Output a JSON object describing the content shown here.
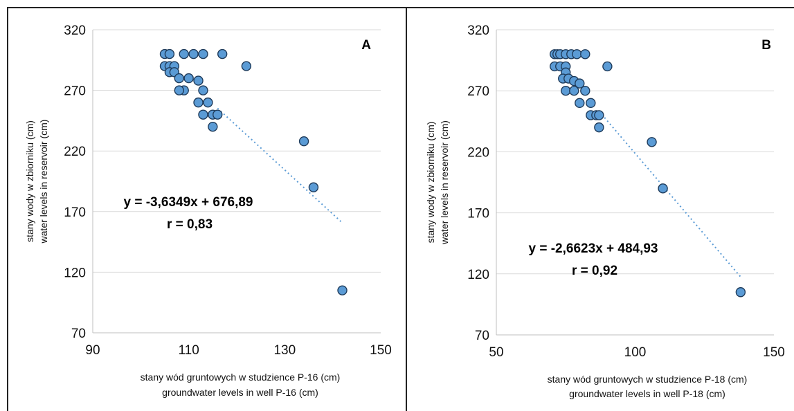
{
  "chart_data": [
    {
      "type": "scatter",
      "panel_label": "A",
      "xlim": [
        90,
        150
      ],
      "ylim": [
        70,
        320
      ],
      "xticks": [
        "90",
        "110",
        "130",
        "150"
      ],
      "yticks": [
        "70",
        "120",
        "170",
        "220",
        "270",
        "320"
      ],
      "xlabel": [
        "stany wód gruntowych w studzience P-16 (cm)",
        "groundwater levels in well P-16 (cm)"
      ],
      "ylabel": [
        "stany wody w zbiorniku (cm)",
        "water levels in reservoir (cm)"
      ],
      "equation": "y = -3,6349x + 676,89",
      "r_text": "r = 0,83",
      "trendline": {
        "slope": -3.6349,
        "intercept": 676.89,
        "x_range": [
          116,
          142
        ]
      },
      "marker_color": "#5b9bd5",
      "marker_edge": "#1f3b5a",
      "trend_color": "#5b9bd5",
      "points": [
        [
          105,
          300
        ],
        [
          106,
          300
        ],
        [
          105,
          290
        ],
        [
          106,
          290
        ],
        [
          107,
          290
        ],
        [
          106,
          285
        ],
        [
          107,
          285
        ],
        [
          108,
          280
        ],
        [
          109,
          270
        ],
        [
          108,
          270
        ],
        [
          110,
          280
        ],
        [
          112,
          278
        ],
        [
          113,
          270
        ],
        [
          112,
          260
        ],
        [
          114,
          260
        ],
        [
          113,
          250
        ],
        [
          115,
          250
        ],
        [
          116,
          250
        ],
        [
          115,
          240
        ],
        [
          109,
          300
        ],
        [
          111,
          300
        ],
        [
          113,
          300
        ],
        [
          117,
          300
        ],
        [
          122,
          290
        ],
        [
          134,
          228
        ],
        [
          136,
          190
        ],
        [
          142,
          105
        ]
      ]
    },
    {
      "type": "scatter",
      "panel_label": "B",
      "xlim": [
        50,
        150
      ],
      "ylim": [
        70,
        320
      ],
      "xticks": [
        "50",
        "100",
        "150"
      ],
      "yticks": [
        "70",
        "120",
        "170",
        "220",
        "270",
        "320"
      ],
      "xlabel": [
        "stany wód gruntowych w studzience P-18 (cm)",
        "groundwater levels in well P-18 (cm)"
      ],
      "ylabel": [
        "stany wody w zbiorniku (cm)",
        "water levels in reservoir (cm)"
      ],
      "equation": "y = -2,6623x + 484,93",
      "r_text": "r = 0,92",
      "trendline": {
        "slope": -2.6623,
        "intercept": 484.93,
        "x_range": [
          88,
          138
        ]
      },
      "marker_color": "#5b9bd5",
      "marker_edge": "#1f3b5a",
      "trend_color": "#5b9bd5",
      "points": [
        [
          71,
          300
        ],
        [
          72,
          300
        ],
        [
          73,
          300
        ],
        [
          75,
          300
        ],
        [
          77,
          300
        ],
        [
          79,
          300
        ],
        [
          82,
          300
        ],
        [
          71,
          290
        ],
        [
          73,
          290
        ],
        [
          75,
          290
        ],
        [
          75,
          285
        ],
        [
          74,
          280
        ],
        [
          76,
          280
        ],
        [
          78,
          278
        ],
        [
          80,
          276
        ],
        [
          75,
          270
        ],
        [
          78,
          270
        ],
        [
          82,
          270
        ],
        [
          80,
          260
        ],
        [
          84,
          260
        ],
        [
          84,
          250
        ],
        [
          86,
          250
        ],
        [
          87,
          250
        ],
        [
          87,
          240
        ],
        [
          90,
          290
        ],
        [
          106,
          228
        ],
        [
          110,
          190
        ],
        [
          138,
          105
        ]
      ]
    }
  ]
}
